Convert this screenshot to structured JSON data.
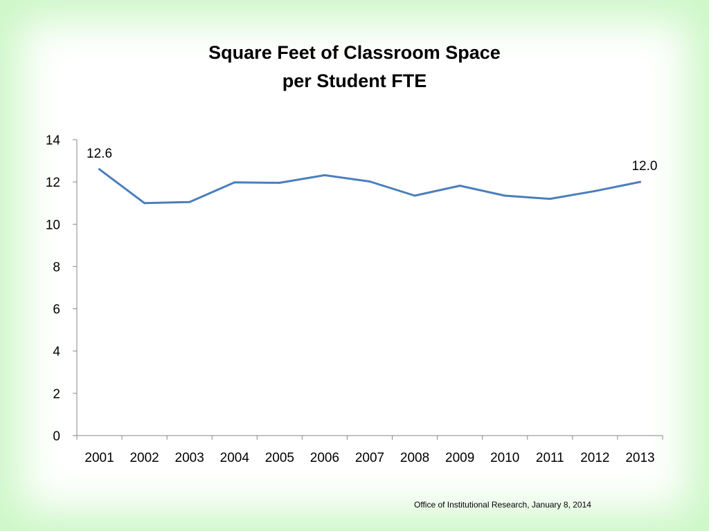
{
  "chart_data": {
    "type": "line",
    "title": [
      "Square Feet of Classroom Space",
      "per Student FTE"
    ],
    "xlabel": "",
    "ylabel": "",
    "categories": [
      "2001",
      "2002",
      "2003",
      "2004",
      "2005",
      "2006",
      "2007",
      "2008",
      "2009",
      "2010",
      "2011",
      "2012",
      "2013"
    ],
    "series": [
      {
        "values": [
          12.6,
          11.0,
          11.05,
          11.98,
          11.96,
          12.32,
          12.02,
          11.35,
          11.82,
          11.35,
          11.2,
          11.57,
          12.0
        ]
      }
    ],
    "data_labels": [
      {
        "index": 0,
        "text": "12.6"
      },
      {
        "index": 12,
        "text": "12.0"
      }
    ],
    "ylim": [
      0,
      14
    ],
    "yticks": [
      "0",
      "2",
      "4",
      "6",
      "8",
      "10",
      "12",
      "14"
    ],
    "grid": false,
    "legend": "none",
    "line_color": "#4a7ebb"
  },
  "footer": {
    "text": "Office of Institutional Research, January 8, 2014"
  }
}
